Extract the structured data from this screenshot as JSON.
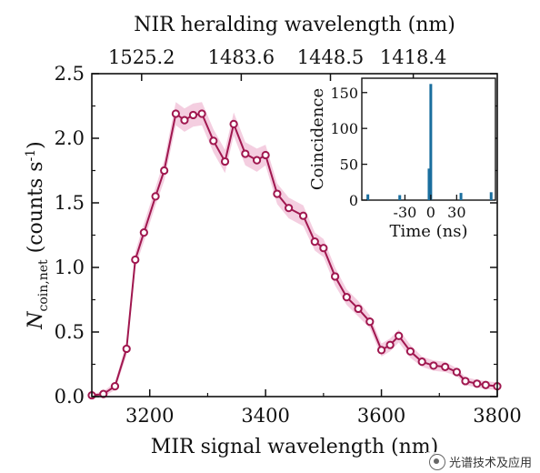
{
  "chart_data": {
    "type": "line",
    "title": "",
    "xlabel": "MIR signal wavelength (nm)",
    "ylabel_main": "N",
    "ylabel_sub": "coin,net",
    "ylabel_unit": " (counts s",
    "ylabel_exp": "-1",
    "ylabel_close": ")",
    "top_axis_label": "NIR heralding wavelength (nm)",
    "top_ticks": [
      {
        "mir": 3186,
        "label": "1525.2"
      },
      {
        "mir": 3358,
        "label": "1483.6"
      },
      {
        "mir": 3512,
        "label": "1448.5"
      },
      {
        "mir": 3655,
        "label": "1418.4"
      }
    ],
    "xlim": [
      3100,
      3800
    ],
    "ylim": [
      0,
      2.5
    ],
    "xticks": [
      3200,
      3400,
      3600,
      3800
    ],
    "yticks": [
      0.0,
      0.5,
      1.0,
      1.5,
      2.0,
      2.5
    ],
    "ytick_labels": [
      "0.0",
      "0.5",
      "1.0",
      "1.5",
      "2.0",
      "2.5"
    ],
    "series": [
      {
        "color": "#a0174f",
        "band_color": "#f2c6db",
        "x": [
          3100,
          3120,
          3140,
          3160,
          3175,
          3190,
          3210,
          3225,
          3245,
          3260,
          3275,
          3290,
          3310,
          3330,
          3345,
          3365,
          3385,
          3400,
          3420,
          3440,
          3465,
          3485,
          3500,
          3520,
          3540,
          3560,
          3580,
          3600,
          3615,
          3630,
          3650,
          3670,
          3690,
          3710,
          3730,
          3745,
          3765,
          3780,
          3800
        ],
        "y": [
          0.01,
          0.02,
          0.08,
          0.37,
          1.06,
          1.27,
          1.55,
          1.75,
          2.19,
          2.14,
          2.18,
          2.19,
          1.98,
          1.82,
          2.11,
          1.88,
          1.83,
          1.87,
          1.57,
          1.46,
          1.4,
          1.2,
          1.15,
          0.93,
          0.77,
          0.68,
          0.58,
          0.36,
          0.4,
          0.47,
          0.35,
          0.27,
          0.24,
          0.23,
          0.19,
          0.12,
          0.1,
          0.09,
          0.08
        ],
        "err": [
          0.01,
          0.02,
          0.03,
          0.05,
          0.06,
          0.07,
          0.07,
          0.08,
          0.09,
          0.09,
          0.09,
          0.09,
          0.09,
          0.09,
          0.09,
          0.09,
          0.09,
          0.08,
          0.08,
          0.08,
          0.08,
          0.07,
          0.07,
          0.07,
          0.06,
          0.06,
          0.05,
          0.05,
          0.05,
          0.05,
          0.05,
          0.04,
          0.04,
          0.04,
          0.03,
          0.03,
          0.03,
          0.03,
          0.03
        ]
      }
    ],
    "grid": false,
    "inset": {
      "type": "bar",
      "xlabel": "Time (ns)",
      "ylabel": "Coincidence",
      "xlim": [
        -80,
        75
      ],
      "ylim": [
        0,
        170
      ],
      "xticks": [
        -30,
        0,
        30
      ],
      "xtick_labels": [
        "-30",
        "0",
        "30"
      ],
      "yticks": [
        0,
        50,
        100,
        150
      ],
      "color": "#1a6e9e",
      "bars": [
        {
          "t": -73,
          "v": 8
        },
        {
          "t": -36,
          "v": 7
        },
        {
          "t": -2,
          "v": 44
        },
        {
          "t": 0,
          "v": 162
        },
        {
          "t": 35,
          "v": 10
        },
        {
          "t": 70,
          "v": 11
        }
      ]
    }
  },
  "watermark": {
    "text": "光谱技术及应用",
    "icon": "wechat-icon"
  }
}
